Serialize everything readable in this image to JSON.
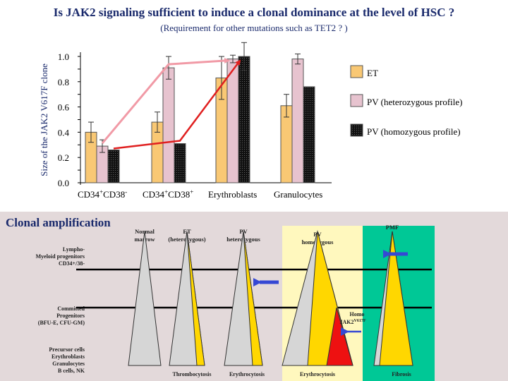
{
  "title": "Is JAK2 signaling sufficient to induce a clonal dominance at the level of HSC ?",
  "subtitle": "(Requirement for other mutations such as TET2 ? )",
  "chart_data": {
    "type": "bar",
    "ylabel": "Size of the JAK2 V617F clone",
    "ylim": [
      0,
      1.0
    ],
    "yticks": [
      "0.0",
      "0.2",
      "0.4",
      "0.6",
      "0.8",
      "1.0"
    ],
    "categories": [
      {
        "main": "CD34",
        "sup": "+",
        "main2": "CD38",
        "sup2": "-"
      },
      {
        "main": "CD34",
        "sup": "+",
        "main2": "CD38",
        "sup2": "+"
      },
      {
        "main": "Erythroblasts",
        "sup": "",
        "main2": "",
        "sup2": ""
      },
      {
        "main": "Granulocytes",
        "sup": "",
        "main2": "",
        "sup2": ""
      }
    ],
    "series": [
      {
        "name": "ET",
        "color": "#f9c874",
        "values": [
          0.4,
          0.48,
          0.83,
          0.61
        ],
        "errors": [
          0.08,
          0.08,
          0.17,
          0.09
        ]
      },
      {
        "name": "PV (heterozygous profile)",
        "color": "#e7c3cf",
        "values": [
          0.29,
          0.91,
          0.98,
          0.98
        ],
        "errors": [
          0.05,
          0.09,
          0.03,
          0.04
        ]
      },
      {
        "name": "PV (homozygous profile)",
        "color": "#1a1a1a",
        "values": [
          0.26,
          0.31,
          1.0,
          0.76
        ],
        "errors": [
          0.0,
          0.0,
          0.11,
          0.0
        ]
      }
    ],
    "arrows": [
      {
        "name": "heterozygous-trend",
        "color": "#f19aa6"
      },
      {
        "name": "homozygous-trend",
        "color": "#e02020"
      }
    ]
  },
  "diagram": {
    "title": "Clonal amplification",
    "columns": [
      "Normal marrow",
      "ET (heterozygous)",
      "PV heterozygous",
      "PV homozygous",
      "PMF"
    ],
    "rows": [
      {
        "l1": "Lympho-",
        "l2": "Myeloid progenitors",
        "l3": "CD34+/38-"
      },
      {
        "l1": "Committed",
        "l2": "Progenitors",
        "l3": "(BFU-E, CFU-GM)"
      },
      {
        "l1": "Precursor cells",
        "l2": "Erythroblasts",
        "l3": "Granulocytes",
        "l4": "B cells, NK"
      }
    ],
    "homo_label": "Homo",
    "homo_label2": "JAK2",
    "homo_sup": "V617F",
    "bottom_labels": [
      "Thrombocytosis",
      "Erythrocytosis",
      "Erythrocytosis",
      "Fibrosis"
    ],
    "colors": {
      "yellow": "#ffd700",
      "gray": "#d6d6d6",
      "red": "#ee1111",
      "green": "#00c896",
      "panel": "#fff8be",
      "arrow": "#3548d4"
    }
  }
}
